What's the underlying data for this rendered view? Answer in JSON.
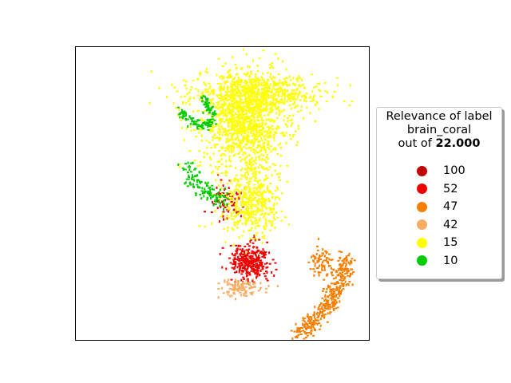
{
  "chart_data": {
    "type": "scatter",
    "title": "",
    "xlabel": "",
    "ylabel": "",
    "axes_ticks": "none",
    "legend": {
      "placement": "right",
      "title_line1": "Relevance of label",
      "title_line2": "brain_coral",
      "title_prefix": "out of ",
      "title_value": "22.000",
      "entries": [
        {
          "label": "100",
          "color": "#c00000"
        },
        {
          "label": "52",
          "color": "#ee0000"
        },
        {
          "label": "47",
          "color": "#f77f00"
        },
        {
          "label": "42",
          "color": "#f8ad64"
        },
        {
          "label": "15",
          "color": "#ffff00"
        },
        {
          "label": "10",
          "color": "#00cc00"
        }
      ]
    },
    "series": [
      {
        "label": "100",
        "color": "#c00000",
        "clusters": [
          {
            "cx": 0.5,
            "cy": 0.5,
            "rx": 0.01,
            "ry": 0.01,
            "n": 4
          }
        ]
      },
      {
        "label": "52",
        "color": "#ee0000",
        "clusters": [
          {
            "cx": 0.595,
            "cy": 0.27,
            "rx": 0.06,
            "ry": 0.055,
            "n": 320
          },
          {
            "cx": 0.515,
            "cy": 0.47,
            "rx": 0.055,
            "ry": 0.05,
            "n": 70
          }
        ]
      },
      {
        "label": "47",
        "color": "#f77f00",
        "curves": [
          {
            "path": [
              [
                0.76,
                0.02
              ],
              [
                0.8,
                0.06
              ],
              [
                0.85,
                0.11
              ],
              [
                0.88,
                0.16
              ],
              [
                0.91,
                0.22
              ],
              [
                0.92,
                0.28
              ]
            ],
            "spread": 0.035,
            "n": 360
          },
          {
            "cx": 0.84,
            "cy": 0.27,
            "rx": 0.035,
            "ry": 0.045,
            "n": 80
          }
        ]
      },
      {
        "label": "42",
        "color": "#f8ad64",
        "clusters": [
          {
            "cx": 0.565,
            "cy": 0.18,
            "rx": 0.07,
            "ry": 0.025,
            "n": 110
          }
        ]
      },
      {
        "label": "15",
        "color": "#ffff00",
        "clusters": [
          {
            "cx": 0.57,
            "cy": 0.75,
            "rx": 0.13,
            "ry": 0.16,
            "n": 1200
          },
          {
            "cx": 0.62,
            "cy": 0.84,
            "rx": 0.2,
            "ry": 0.06,
            "n": 550
          },
          {
            "cx": 0.6,
            "cy": 0.47,
            "rx": 0.09,
            "ry": 0.1,
            "n": 450
          }
        ]
      },
      {
        "label": "10",
        "color": "#00cc00",
        "curves": [
          {
            "path": [
              [
                0.35,
                0.78
              ],
              [
                0.38,
                0.76
              ],
              [
                0.41,
                0.74
              ],
              [
                0.44,
                0.73
              ],
              [
                0.47,
                0.75
              ]
            ],
            "spread": 0.018,
            "n": 90
          },
          {
            "path": [
              [
                0.38,
                0.6
              ],
              [
                0.4,
                0.56
              ],
              [
                0.43,
                0.51
              ],
              [
                0.47,
                0.49
              ],
              [
                0.5,
                0.48
              ]
            ],
            "spread": 0.03,
            "n": 120
          },
          {
            "path": [
              [
                0.43,
                0.84
              ],
              [
                0.45,
                0.8
              ],
              [
                0.47,
                0.77
              ]
            ],
            "spread": 0.015,
            "n": 45
          }
        ]
      }
    ]
  }
}
